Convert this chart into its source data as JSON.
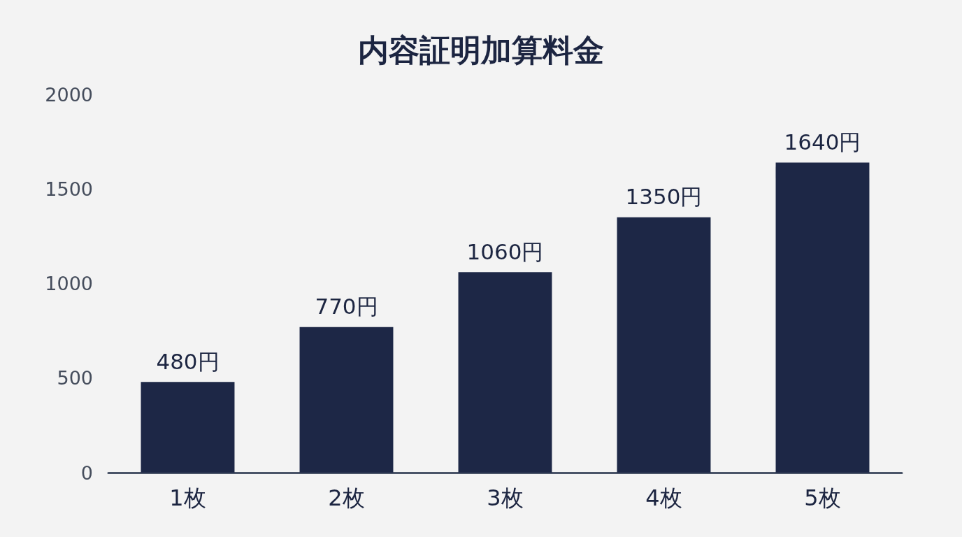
{
  "chart_data": {
    "type": "bar",
    "title": "内容証明加算料金",
    "categories": [
      "1枚",
      "2枚",
      "3枚",
      "4枚",
      "5枚"
    ],
    "values": [
      480,
      770,
      1060,
      1350,
      1640
    ],
    "value_labels": [
      "480円",
      "770円",
      "1060円",
      "1350円",
      "1640円"
    ],
    "color": "#1d2746",
    "ylim": [
      0,
      2000
    ],
    "yticks": [
      0,
      500,
      1000,
      1500,
      2000
    ],
    "grid": false
  }
}
